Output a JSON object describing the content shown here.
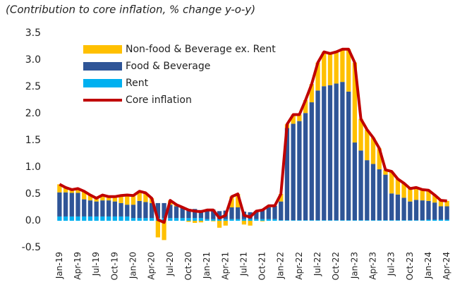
{
  "chart_data": {
    "type": "bar",
    "stacked": true,
    "title": "(Contribution to core inflation, % change y-o-y)",
    "categories": [
      "Jan-19",
      null,
      null,
      "Apr-19",
      null,
      null,
      "Jul-19",
      null,
      null,
      "Oct-19",
      null,
      null,
      "Jan-20",
      null,
      null,
      "Apr-20",
      null,
      null,
      "Jul-20",
      null,
      null,
      "Oct-20",
      null,
      null,
      "Jan-21",
      null,
      null,
      "Apr-21",
      null,
      null,
      "Jul-21",
      null,
      null,
      "Oct-21",
      null,
      null,
      "Jan-22",
      null,
      null,
      "Apr-22",
      null,
      null,
      "Jul-22",
      null,
      null,
      "Oct-22",
      null,
      null,
      "Jan-23",
      null,
      null,
      "Apr-23",
      null,
      null,
      "Jul-23",
      null,
      null,
      "Oct-23",
      null,
      null,
      "Jan-24",
      null,
      null,
      "Apr-24"
    ],
    "series": [
      {
        "name": "Non-food & Beverage ex. Rent",
        "color": "#ffc000",
        "values": [
          0.15,
          0.09,
          0.06,
          0.08,
          0.15,
          0.1,
          0.06,
          0.1,
          0.07,
          0.09,
          0.14,
          0.18,
          0.17,
          0.18,
          0.17,
          0.09,
          -0.31,
          -0.36,
          0.08,
          0.03,
          0.0,
          -0.02,
          -0.04,
          -0.03,
          0.01,
          -0.01,
          -0.13,
          -0.09,
          0.2,
          0.25,
          -0.07,
          -0.09,
          0.0,
          -0.01,
          0.03,
          0.0,
          0.14,
          0.07,
          0.17,
          0.12,
          0.24,
          0.34,
          0.52,
          0.64,
          0.59,
          0.59,
          0.61,
          0.79,
          1.49,
          0.59,
          0.57,
          0.49,
          0.39,
          0.09,
          0.41,
          0.29,
          0.27,
          0.24,
          0.23,
          0.2,
          0.2,
          0.14,
          0.11,
          0.1
        ]
      },
      {
        "name": "Food & Beverage",
        "color": "#2f5597",
        "values": [
          0.45,
          0.45,
          0.44,
          0.44,
          0.32,
          0.3,
          0.28,
          0.3,
          0.3,
          0.28,
          0.25,
          0.22,
          0.25,
          0.32,
          0.3,
          0.28,
          0.28,
          0.28,
          0.25,
          0.22,
          0.2,
          0.17,
          0.17,
          0.15,
          0.16,
          0.18,
          0.15,
          0.16,
          0.22,
          0.22,
          0.14,
          0.13,
          0.15,
          0.18,
          0.22,
          0.25,
          0.35,
          1.72,
          1.8,
          1.85,
          2.0,
          2.2,
          2.42,
          2.5,
          2.52,
          2.55,
          2.58,
          2.4,
          1.45,
          1.3,
          1.12,
          1.05,
          0.95,
          0.85,
          0.5,
          0.48,
          0.42,
          0.35,
          0.38,
          0.37,
          0.35,
          0.32,
          0.25,
          0.25
        ]
      },
      {
        "name": "Rent",
        "color": "#00b0f0",
        "values": [
          0.08,
          0.08,
          0.08,
          0.08,
          0.08,
          0.08,
          0.08,
          0.08,
          0.08,
          0.08,
          0.08,
          0.08,
          0.05,
          0.05,
          0.05,
          0.05,
          0.05,
          0.05,
          0.05,
          0.05,
          0.05,
          0.05,
          0.05,
          0.05,
          0.03,
          0.03,
          0.03,
          0.03,
          0.03,
          0.03,
          0.03,
          0.03,
          0.03,
          0.03,
          0.03,
          0.03,
          0.01,
          0.01,
          0.01,
          0.01,
          0.01,
          0.01,
          0.01,
          0.01,
          0.01,
          0.01,
          0.01,
          0.01,
          0.01,
          0.01,
          0.01,
          0.01,
          0.01,
          0.01,
          0.01,
          0.01,
          0.01,
          0.01,
          0.01,
          0.01,
          0.02,
          0.02,
          0.02,
          0.02
        ]
      },
      {
        "name": "Core inflation",
        "type": "line",
        "color": "#c00000",
        "values": [
          0.68,
          0.62,
          0.58,
          0.6,
          0.55,
          0.48,
          0.42,
          0.48,
          0.45,
          0.45,
          0.47,
          0.48,
          0.47,
          0.55,
          0.52,
          0.42,
          0.02,
          -0.03,
          0.38,
          0.3,
          0.25,
          0.2,
          0.18,
          0.17,
          0.2,
          0.2,
          0.05,
          0.1,
          0.45,
          0.5,
          0.1,
          0.07,
          0.18,
          0.2,
          0.28,
          0.28,
          0.5,
          1.8,
          1.98,
          1.98,
          2.25,
          2.55,
          2.95,
          3.15,
          3.12,
          3.15,
          3.2,
          3.2,
          2.95,
          1.9,
          1.7,
          1.55,
          1.35,
          0.95,
          0.92,
          0.78,
          0.7,
          0.6,
          0.62,
          0.58,
          0.57,
          0.48,
          0.38,
          0.37
        ]
      }
    ],
    "ylim": [
      -0.5,
      3.5
    ],
    "yticks": [
      -0.5,
      {
        "value": 0,
        "label": "0.0"
      },
      0.5,
      {
        "value": 1,
        "label": "1.0"
      },
      1.5,
      {
        "value": 2,
        "label": "2.0"
      },
      2.5,
      {
        "value": 3,
        "label": "3.0"
      },
      3.5
    ],
    "grid": false,
    "legend": "upper-left"
  }
}
